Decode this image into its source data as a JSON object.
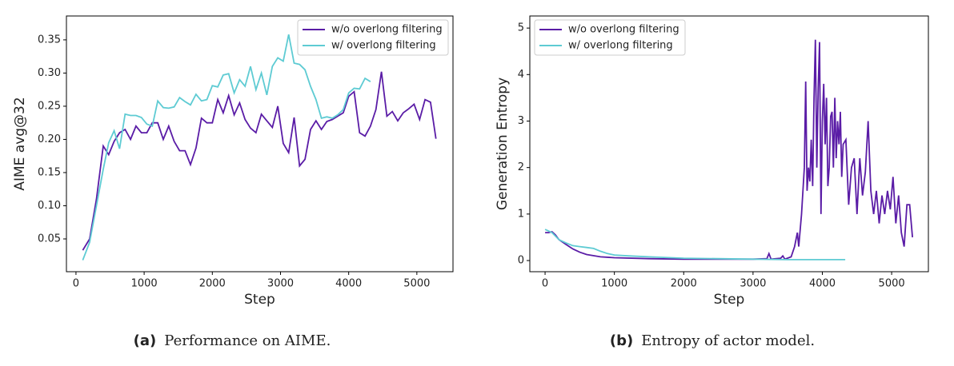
{
  "chart_data": [
    {
      "type": "line",
      "xlabel": "Step",
      "ylabel": "AIME avg@32",
      "legend": "upper right",
      "caption": {
        "label": "(a)",
        "text": "Performance on AIME."
      },
      "xlim": [
        -140,
        5530
      ],
      "ylim": [
        0.0006,
        0.386
      ],
      "xticks": [
        0,
        1000,
        2000,
        3000,
        4000,
        5000
      ],
      "yticks": [
        0.05,
        {
          "value": 0.1,
          "label": "0.10"
        },
        0.15,
        {
          "value": 0.2,
          "label": "0.20"
        },
        0.25,
        {
          "value": 0.3,
          "label": "0.30"
        },
        0.35
      ],
      "series": [
        {
          "name": "w/o overlong filtering",
          "color": "#5a1ca6",
          "x": [
            100,
            200,
            300,
            400,
            480,
            560,
            640,
            720,
            800,
            880,
            960,
            1040,
            1120,
            1200,
            1280,
            1360,
            1440,
            1520,
            1600,
            1680,
            1760,
            1840,
            1920,
            2000,
            2080,
            2160,
            2240,
            2320,
            2400,
            2480,
            2560,
            2640,
            2720,
            2800,
            2880,
            2960,
            3040,
            3120,
            3200,
            3280,
            3360,
            3440,
            3520,
            3600,
            3680,
            3760,
            3840,
            3920,
            4000,
            4080,
            4160,
            4240,
            4320,
            4400,
            4480,
            4560,
            4640,
            4720,
            4800,
            4880,
            4960,
            5040,
            5120,
            5200,
            5280
          ],
          "values": [
            0.033,
            0.05,
            0.11,
            0.19,
            0.177,
            0.197,
            0.21,
            0.215,
            0.2,
            0.22,
            0.21,
            0.21,
            0.225,
            0.225,
            0.2,
            0.22,
            0.197,
            0.183,
            0.183,
            0.162,
            0.187,
            0.232,
            0.225,
            0.225,
            0.26,
            0.24,
            0.266,
            0.237,
            0.255,
            0.23,
            0.217,
            0.21,
            0.238,
            0.228,
            0.218,
            0.25,
            0.194,
            0.18,
            0.233,
            0.16,
            0.17,
            0.215,
            0.228,
            0.215,
            0.227,
            0.23,
            0.235,
            0.24,
            0.265,
            0.272,
            0.21,
            0.205,
            0.22,
            0.245,
            0.302,
            0.235,
            0.242,
            0.228,
            0.24,
            0.246,
            0.253,
            0.23,
            0.26,
            0.256,
            0.201
          ]
        },
        {
          "name": "w/ overlong filtering",
          "color": "#5ecbd3",
          "x": [
            100,
            200,
            300,
            400,
            480,
            560,
            640,
            720,
            800,
            880,
            960,
            1040,
            1120,
            1200,
            1280,
            1360,
            1440,
            1520,
            1600,
            1680,
            1760,
            1840,
            1920,
            2000,
            2080,
            2160,
            2240,
            2320,
            2400,
            2480,
            2560,
            2640,
            2720,
            2800,
            2880,
            2960,
            3040,
            3120,
            3200,
            3280,
            3360,
            3440,
            3520,
            3600,
            3680,
            3760,
            3840,
            3920,
            4000,
            4080,
            4160,
            4240,
            4320
          ],
          "values": [
            0.018,
            0.045,
            0.1,
            0.155,
            0.195,
            0.213,
            0.186,
            0.238,
            0.236,
            0.236,
            0.233,
            0.223,
            0.22,
            0.258,
            0.248,
            0.247,
            0.249,
            0.263,
            0.257,
            0.252,
            0.268,
            0.258,
            0.26,
            0.281,
            0.279,
            0.297,
            0.299,
            0.27,
            0.29,
            0.28,
            0.31,
            0.275,
            0.3,
            0.267,
            0.31,
            0.323,
            0.318,
            0.358,
            0.315,
            0.313,
            0.305,
            0.28,
            0.26,
            0.232,
            0.234,
            0.232,
            0.237,
            0.245,
            0.27,
            0.277,
            0.276,
            0.292,
            0.287
          ]
        }
      ]
    },
    {
      "type": "line",
      "xlabel": "Step",
      "ylabel": "Generation Entropy",
      "legend": "upper left",
      "caption": {
        "label": "(b)",
        "text": "Entropy of actor model."
      },
      "xlim": [
        -220,
        5530
      ],
      "ylim": [
        -0.24,
        5.26
      ],
      "xticks": [
        0,
        1000,
        2000,
        3000,
        4000,
        5000
      ],
      "yticks": [
        0,
        1,
        2,
        3,
        4,
        5
      ],
      "series": [
        {
          "name": "w/o overlong filtering",
          "color": "#5a1ca6",
          "x": [
            0,
            50,
            100,
            150,
            200,
            300,
            400,
            500,
            600,
            800,
            1000,
            1500,
            2000,
            2500,
            3000,
            3200,
            3230,
            3260,
            3400,
            3430,
            3460,
            3550,
            3600,
            3640,
            3660,
            3700,
            3740,
            3760,
            3780,
            3800,
            3820,
            3840,
            3860,
            3880,
            3900,
            3920,
            3940,
            3960,
            3980,
            4000,
            4020,
            4040,
            4060,
            4080,
            4100,
            4120,
            4140,
            4160,
            4180,
            4200,
            4220,
            4240,
            4260,
            4280,
            4300,
            4340,
            4380,
            4420,
            4460,
            4500,
            4540,
            4580,
            4620,
            4660,
            4700,
            4740,
            4780,
            4820,
            4860,
            4900,
            4940,
            4980,
            5020,
            5060,
            5100,
            5140,
            5180,
            5220,
            5260,
            5300
          ],
          "values": [
            0.6,
            0.6,
            0.62,
            0.55,
            0.45,
            0.35,
            0.25,
            0.18,
            0.13,
            0.08,
            0.06,
            0.04,
            0.03,
            0.03,
            0.03,
            0.04,
            0.15,
            0.03,
            0.05,
            0.1,
            0.03,
            0.08,
            0.3,
            0.6,
            0.3,
            1.0,
            2.0,
            3.85,
            1.5,
            2.0,
            1.7,
            2.6,
            1.6,
            3.5,
            4.75,
            2.0,
            3.7,
            4.7,
            1.0,
            3.0,
            3.8,
            2.5,
            3.5,
            1.6,
            2.0,
            3.1,
            3.2,
            2.0,
            3.5,
            2.2,
            3.0,
            2.5,
            3.2,
            1.8,
            2.5,
            2.6,
            1.2,
            2.0,
            2.2,
            1.0,
            2.2,
            1.4,
            1.9,
            3.0,
            1.5,
            1.0,
            1.5,
            0.8,
            1.4,
            1.0,
            1.5,
            1.1,
            1.8,
            0.8,
            1.4,
            0.6,
            0.3,
            1.2,
            1.2,
            0.5
          ]
        },
        {
          "name": "w/ overlong filtering",
          "color": "#5ecbd3",
          "x": [
            0,
            100,
            200,
            300,
            400,
            500,
            600,
            700,
            800,
            900,
            1000,
            1200,
            1500,
            2000,
            2500,
            3000,
            3500,
            4000,
            4330
          ],
          "values": [
            0.67,
            0.6,
            0.45,
            0.38,
            0.32,
            0.3,
            0.28,
            0.26,
            0.2,
            0.15,
            0.12,
            0.1,
            0.08,
            0.05,
            0.04,
            0.03,
            0.02,
            0.02,
            0.02
          ]
        }
      ]
    }
  ]
}
